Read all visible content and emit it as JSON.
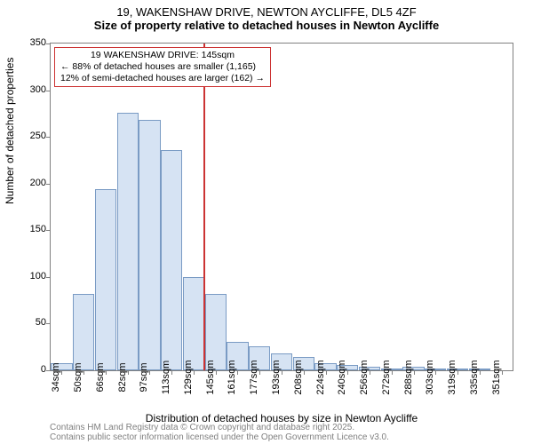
{
  "title": {
    "line1": "19, WAKENSHAW DRIVE, NEWTON AYCLIFFE, DL5 4ZF",
    "line2": "Size of property relative to detached houses in Newton Aycliffe"
  },
  "chart": {
    "type": "histogram",
    "ylabel": "Number of detached properties",
    "xlabel": "Distribution of detached houses by size in Newton Aycliffe",
    "ylim": [
      0,
      350
    ],
    "ytick_step": 50,
    "background_color": "#ffffff",
    "border_color": "#808080",
    "bar_fill": "#d6e3f3",
    "bar_border": "#7a9bc4",
    "ref_line_color": "#cc3333",
    "ref_value": 145,
    "annot": {
      "l1": "19 WAKENSHAW DRIVE: 145sqm",
      "l2": "← 88% of detached houses are smaller (1,165)",
      "l3": "12% of semi-detached houses are larger (162) →"
    },
    "x_categories": [
      "34sqm",
      "50sqm",
      "66sqm",
      "82sqm",
      "97sqm",
      "113sqm",
      "129sqm",
      "145sqm",
      "161sqm",
      "177sqm",
      "193sqm",
      "208sqm",
      "224sqm",
      "240sqm",
      "256sqm",
      "272sqm",
      "288sqm",
      "303sqm",
      "319sqm",
      "335sqm",
      "351sqm"
    ],
    "values": [
      8,
      82,
      194,
      276,
      268,
      236,
      100,
      82,
      30,
      26,
      18,
      14,
      8,
      6,
      4,
      2,
      4,
      2,
      2,
      2,
      0
    ],
    "label_fontsize": 12,
    "tick_fontsize": 11
  },
  "footer": {
    "l1": "Contains HM Land Registry data © Crown copyright and database right 2025.",
    "l2": "Contains public sector information licensed under the Open Government Licence v3.0."
  }
}
